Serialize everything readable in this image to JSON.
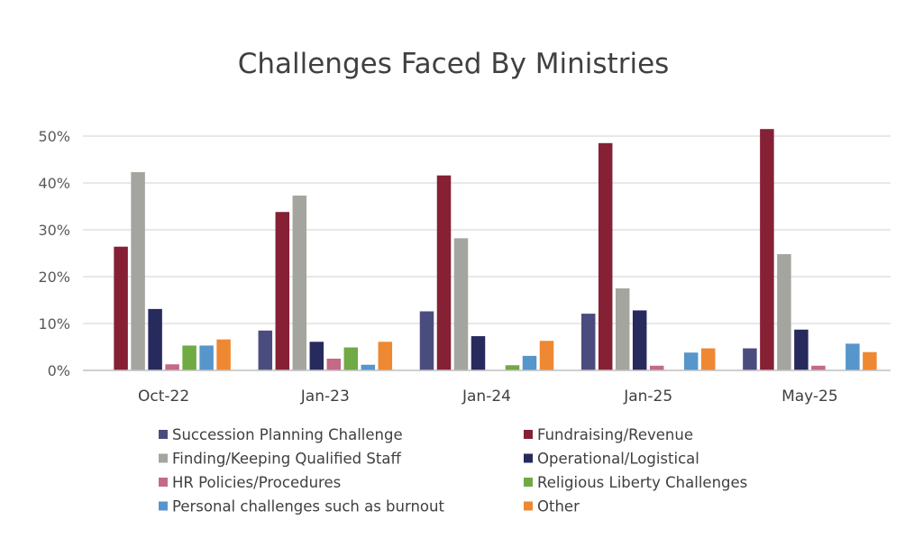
{
  "chart_data": {
    "type": "bar",
    "title": "Challenges Faced By Ministries",
    "xlabel": "",
    "ylabel": "",
    "ylim": [
      0,
      0.5
    ],
    "yticks": [
      0,
      0.1,
      0.2,
      0.3,
      0.4,
      0.5
    ],
    "ytick_labels": [
      "0%",
      "10%",
      "20%",
      "30%",
      "40%",
      "50%"
    ],
    "grid": true,
    "legend_position": "bottom",
    "categories": [
      "Oct-22",
      "Jan-23",
      "Jan-24",
      "Jan-25",
      "May-25"
    ],
    "series": [
      {
        "name": "Succession Planning Challenge",
        "color": "#4B4C7E",
        "values": [
          null,
          0.085,
          0.126,
          0.121,
          0.047
        ]
      },
      {
        "name": "Fundraising/Revenue",
        "color": "#862035",
        "values": [
          0.264,
          0.338,
          0.416,
          0.485,
          0.515
        ]
      },
      {
        "name": "Finding/Keeping Qualified Staff",
        "color": "#A5A5A0",
        "values": [
          0.423,
          0.373,
          0.282,
          0.175,
          0.248
        ]
      },
      {
        "name": "Operational/Logistical",
        "color": "#262A5C",
        "values": [
          0.131,
          0.061,
          0.073,
          0.128,
          0.087
        ]
      },
      {
        "name": "HR Policies/Procedures",
        "color": "#C36A86",
        "values": [
          0.013,
          0.025,
          null,
          0.01,
          0.01
        ]
      },
      {
        "name": "Religious Liberty Challenges",
        "color": "#6FAA45",
        "values": [
          0.053,
          0.049,
          0.011,
          null,
          null
        ]
      },
      {
        "name": "Personal challenges such as burnout",
        "color": "#5696CB",
        "values": [
          0.053,
          0.012,
          0.031,
          0.038,
          0.057
        ]
      },
      {
        "name": "Other",
        "color": "#EE8832",
        "values": [
          0.066,
          0.061,
          0.063,
          0.047,
          0.039
        ]
      }
    ]
  }
}
